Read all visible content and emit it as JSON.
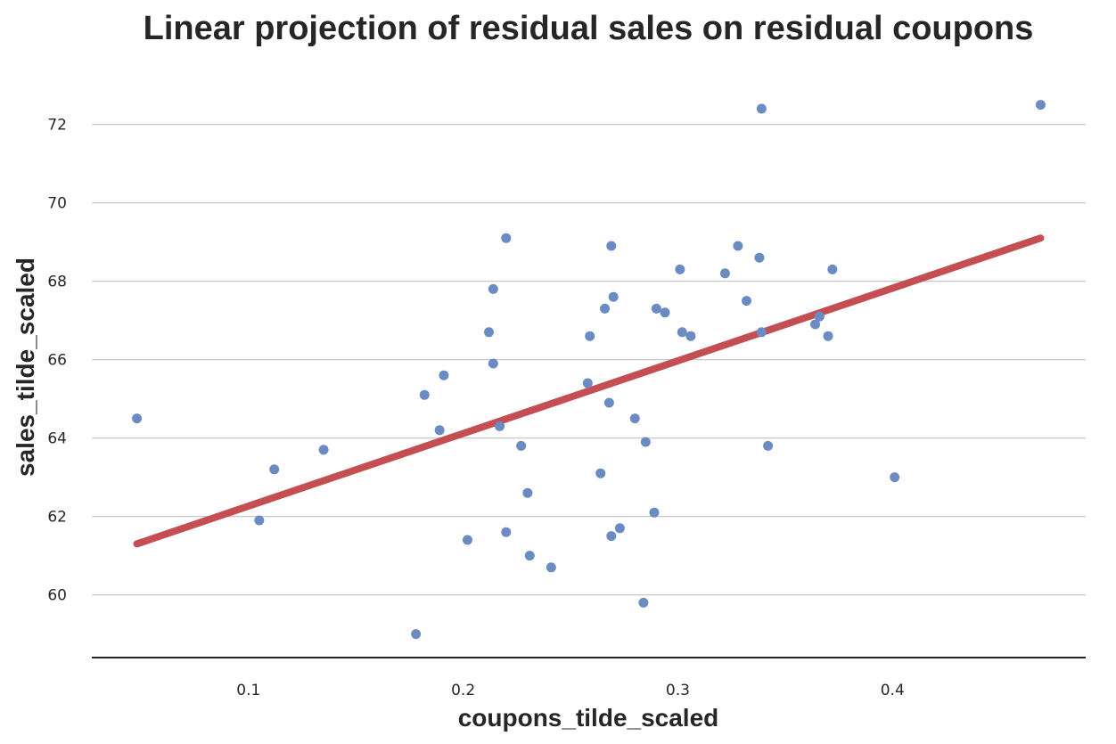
{
  "colors": {
    "points": "#6b8bc3",
    "fit_line": "#c44e52",
    "grid": "#c8c8c8",
    "axis": "#262626",
    "text": "#262626"
  },
  "chart_data": {
    "type": "scatter",
    "title": "Linear projection of residual sales on residual coupons",
    "xlabel": "coupons_tilde_scaled",
    "ylabel": "sales_tilde_scaled",
    "xlim": [
      0.027,
      0.49
    ],
    "ylim": [
      58.4,
      73.4
    ],
    "x_ticks": [
      0.1,
      0.2,
      0.3,
      0.4
    ],
    "x_tick_labels": [
      "0.1",
      "0.2",
      "0.3",
      "0.4"
    ],
    "y_ticks": [
      60,
      62,
      64,
      66,
      68,
      70,
      72
    ],
    "y_tick_labels": [
      "60",
      "62",
      "64",
      "66",
      "68",
      "70",
      "72"
    ],
    "grid": "horizontal",
    "x": [
      0.048,
      0.105,
      0.112,
      0.135,
      0.178,
      0.182,
      0.189,
      0.191,
      0.202,
      0.212,
      0.214,
      0.214,
      0.217,
      0.22,
      0.22,
      0.227,
      0.23,
      0.231,
      0.241,
      0.258,
      0.259,
      0.264,
      0.266,
      0.268,
      0.269,
      0.269,
      0.27,
      0.273,
      0.28,
      0.284,
      0.285,
      0.289,
      0.29,
      0.294,
      0.301,
      0.302,
      0.306,
      0.322,
      0.328,
      0.332,
      0.338,
      0.339,
      0.339,
      0.342,
      0.364,
      0.366,
      0.37,
      0.372,
      0.401,
      0.469
    ],
    "y": [
      64.5,
      61.9,
      63.2,
      63.7,
      59.0,
      65.1,
      64.2,
      65.6,
      61.4,
      66.7,
      65.9,
      67.8,
      64.3,
      69.1,
      61.6,
      63.8,
      62.6,
      61.0,
      60.7,
      65.4,
      66.6,
      63.1,
      67.3,
      64.9,
      61.5,
      68.9,
      67.6,
      61.7,
      64.5,
      59.8,
      63.9,
      62.1,
      67.3,
      67.2,
      68.3,
      66.7,
      66.6,
      68.2,
      68.9,
      67.5,
      68.6,
      66.7,
      72.4,
      63.8,
      66.9,
      67.1,
      66.6,
      68.3,
      63.0,
      72.5
    ],
    "fit_line": {
      "x": [
        0.048,
        0.469
      ],
      "y": [
        61.3,
        69.1
      ]
    }
  }
}
